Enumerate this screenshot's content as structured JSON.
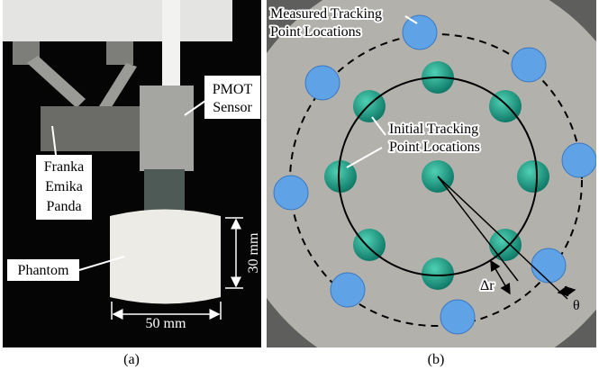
{
  "panel_a": {
    "sensor_label": [
      "PMOT",
      "Sensor"
    ],
    "robot_label": [
      "Franka",
      "Emika",
      "Panda"
    ],
    "phantom_label": "Phantom",
    "height_dim": "30 mm",
    "width_dim": "50 mm",
    "caption": "(a)"
  },
  "panel_b": {
    "measured_label": [
      "Measured Tracking",
      "Point Locations"
    ],
    "initial_label": [
      "Initial Tracking",
      "Point Locations"
    ],
    "delta_r": "Δr",
    "theta": "θ",
    "caption": "(b)"
  }
}
